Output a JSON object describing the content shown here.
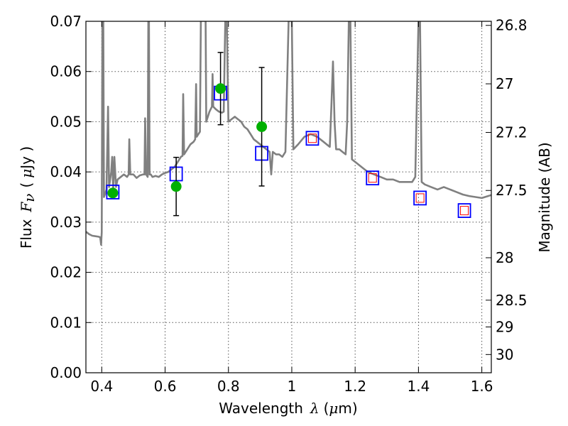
{
  "chart_data": {
    "type": "scatter",
    "xlabel_prefix": "Wavelength",
    "xlabel_symbol": "λ",
    "xlabel_unit_open": "(",
    "xlabel_unit_mu": "μ",
    "xlabel_unit_rest": "m)",
    "ylabel_prefix": "Flux",
    "ylabel_symbol": "F",
    "ylabel_sub": "ν",
    "ylabel_unit_open": "(",
    "ylabel_unit_mu": "μ",
    "ylabel_unit_rest": "Jy )",
    "y2label": "Magnitude (AB)",
    "xlim": [
      0.35,
      1.63
    ],
    "ylim": [
      0.0,
      0.07
    ],
    "grid": true,
    "xticks": [
      0.4,
      0.6,
      0.8,
      1.0,
      1.2,
      1.4,
      1.6
    ],
    "xtick_labels": [
      "0.4",
      "0.6",
      "0.8",
      "1",
      "1.2",
      "1.4",
      "1.6"
    ],
    "yticks": [
      0.0,
      0.01,
      0.02,
      0.03,
      0.04,
      0.05,
      0.06,
      0.07
    ],
    "ytick_labels": [
      "0.00",
      "0.01",
      "0.02",
      "0.03",
      "0.04",
      "0.05",
      "0.06",
      "0.07"
    ],
    "mag_ticks": [
      26.8,
      27.0,
      27.2,
      27.5,
      28.0,
      28.5,
      29.0,
      30.0
    ],
    "mag_tick_labels": [
      "26.8",
      "27",
      "27.2",
      "27.5",
      "28",
      "28.5",
      "29",
      "30"
    ],
    "colors": {
      "spectrum": "#808080",
      "observed": "#00b000",
      "model_box": "#0000ff",
      "inner_box": "#ff0000",
      "errorbar": "#000000",
      "grid": "#555555"
    },
    "spectrum": [
      [
        0.35,
        0.0281
      ],
      [
        0.36,
        0.0276
      ],
      [
        0.37,
        0.0273
      ],
      [
        0.38,
        0.0272
      ],
      [
        0.39,
        0.0271
      ],
      [
        0.395,
        0.027
      ],
      [
        0.398,
        0.0255
      ],
      [
        0.4,
        0.028
      ],
      [
        0.402,
        0.0701
      ],
      [
        0.405,
        0.0701
      ],
      [
        0.407,
        0.035
      ],
      [
        0.41,
        0.0355
      ],
      [
        0.415,
        0.0365
      ],
      [
        0.42,
        0.053
      ],
      [
        0.423,
        0.037
      ],
      [
        0.43,
        0.04
      ],
      [
        0.433,
        0.043
      ],
      [
        0.436,
        0.036
      ],
      [
        0.44,
        0.043
      ],
      [
        0.445,
        0.037
      ],
      [
        0.45,
        0.0385
      ],
      [
        0.46,
        0.039
      ],
      [
        0.47,
        0.0395
      ],
      [
        0.48,
        0.039
      ],
      [
        0.485,
        0.0395
      ],
      [
        0.487,
        0.0465
      ],
      [
        0.49,
        0.0395
      ],
      [
        0.5,
        0.0395
      ],
      [
        0.51,
        0.0388
      ],
      [
        0.52,
        0.0393
      ],
      [
        0.53,
        0.0395
      ],
      [
        0.535,
        0.0395
      ],
      [
        0.537,
        0.0507
      ],
      [
        0.54,
        0.0395
      ],
      [
        0.545,
        0.039
      ],
      [
        0.547,
        0.0701
      ],
      [
        0.549,
        0.0701
      ],
      [
        0.551,
        0.0395
      ],
      [
        0.555,
        0.0395
      ],
      [
        0.56,
        0.039
      ],
      [
        0.57,
        0.0392
      ],
      [
        0.58,
        0.039
      ],
      [
        0.59,
        0.0395
      ],
      [
        0.6,
        0.0398
      ],
      [
        0.61,
        0.04
      ],
      [
        0.62,
        0.0405
      ],
      [
        0.63,
        0.041
      ],
      [
        0.64,
        0.042
      ],
      [
        0.65,
        0.043
      ],
      [
        0.655,
        0.0432
      ],
      [
        0.657,
        0.0555
      ],
      [
        0.66,
        0.0435
      ],
      [
        0.67,
        0.0445
      ],
      [
        0.68,
        0.0455
      ],
      [
        0.69,
        0.046
      ],
      [
        0.695,
        0.0465
      ],
      [
        0.698,
        0.0575
      ],
      [
        0.7,
        0.047
      ],
      [
        0.71,
        0.048
      ],
      [
        0.713,
        0.0701
      ],
      [
        0.72,
        0.0701
      ],
      [
        0.728,
        0.0701
      ],
      [
        0.73,
        0.05
      ],
      [
        0.74,
        0.052
      ],
      [
        0.748,
        0.053
      ],
      [
        0.75,
        0.0595
      ],
      [
        0.752,
        0.053
      ],
      [
        0.76,
        0.0525
      ],
      [
        0.77,
        0.052
      ],
      [
        0.78,
        0.0518
      ],
      [
        0.785,
        0.052
      ],
      [
        0.79,
        0.0701
      ],
      [
        0.795,
        0.0701
      ],
      [
        0.8,
        0.05
      ],
      [
        0.81,
        0.0505
      ],
      [
        0.82,
        0.051
      ],
      [
        0.83,
        0.0505
      ],
      [
        0.84,
        0.05
      ],
      [
        0.85,
        0.049
      ],
      [
        0.86,
        0.0485
      ],
      [
        0.87,
        0.0475
      ],
      [
        0.88,
        0.0465
      ],
      [
        0.89,
        0.046
      ],
      [
        0.9,
        0.0455
      ],
      [
        0.91,
        0.045
      ],
      [
        0.92,
        0.0445
      ],
      [
        0.93,
        0.044
      ],
      [
        0.935,
        0.0395
      ],
      [
        0.94,
        0.044
      ],
      [
        0.95,
        0.0435
      ],
      [
        0.96,
        0.0435
      ],
      [
        0.97,
        0.043
      ],
      [
        0.98,
        0.044
      ],
      [
        0.99,
        0.0701
      ],
      [
        1.0,
        0.0701
      ],
      [
        1.005,
        0.0445
      ],
      [
        1.02,
        0.0455
      ],
      [
        1.04,
        0.047
      ],
      [
        1.06,
        0.0475
      ],
      [
        1.08,
        0.047
      ],
      [
        1.1,
        0.046
      ],
      [
        1.11,
        0.0455
      ],
      [
        1.12,
        0.045
      ],
      [
        1.125,
        0.053
      ],
      [
        1.13,
        0.062
      ],
      [
        1.135,
        0.05
      ],
      [
        1.14,
        0.0445
      ],
      [
        1.15,
        0.0445
      ],
      [
        1.16,
        0.044
      ],
      [
        1.17,
        0.0435
      ],
      [
        1.175,
        0.05
      ],
      [
        1.18,
        0.0701
      ],
      [
        1.185,
        0.0701
      ],
      [
        1.19,
        0.0425
      ],
      [
        1.2,
        0.042
      ],
      [
        1.22,
        0.041
      ],
      [
        1.24,
        0.04
      ],
      [
        1.26,
        0.0395
      ],
      [
        1.28,
        0.039
      ],
      [
        1.3,
        0.0385
      ],
      [
        1.32,
        0.0385
      ],
      [
        1.34,
        0.038
      ],
      [
        1.36,
        0.038
      ],
      [
        1.38,
        0.038
      ],
      [
        1.39,
        0.039
      ],
      [
        1.4,
        0.0701
      ],
      [
        1.405,
        0.07
      ],
      [
        1.41,
        0.038
      ],
      [
        1.42,
        0.0375
      ],
      [
        1.44,
        0.037
      ],
      [
        1.46,
        0.0365
      ],
      [
        1.48,
        0.037
      ],
      [
        1.5,
        0.0365
      ],
      [
        1.52,
        0.036
      ],
      [
        1.54,
        0.0355
      ],
      [
        1.56,
        0.0352
      ],
      [
        1.58,
        0.035
      ],
      [
        1.6,
        0.0348
      ],
      [
        1.62,
        0.0352
      ],
      [
        1.63,
        0.0354
      ]
    ],
    "model_points": [
      {
        "x": 0.435,
        "y": 0.036,
        "inner": false
      },
      {
        "x": 0.635,
        "y": 0.0396,
        "inner": false
      },
      {
        "x": 0.775,
        "y": 0.0557,
        "inner": false
      },
      {
        "x": 0.905,
        "y": 0.0437,
        "inner": false
      },
      {
        "x": 1.065,
        "y": 0.0467,
        "inner": true
      },
      {
        "x": 1.255,
        "y": 0.0388,
        "inner": true
      },
      {
        "x": 1.405,
        "y": 0.0348,
        "inner": true
      },
      {
        "x": 1.545,
        "y": 0.0323,
        "inner": true
      }
    ],
    "observed_points": [
      {
        "x": 0.435,
        "y": 0.0358,
        "err": null
      },
      {
        "x": 0.635,
        "y": 0.0371,
        "err": 0.0058
      },
      {
        "x": 0.775,
        "y": 0.0566,
        "err": 0.0072
      },
      {
        "x": 0.905,
        "y": 0.049,
        "err": 0.0118
      }
    ]
  }
}
